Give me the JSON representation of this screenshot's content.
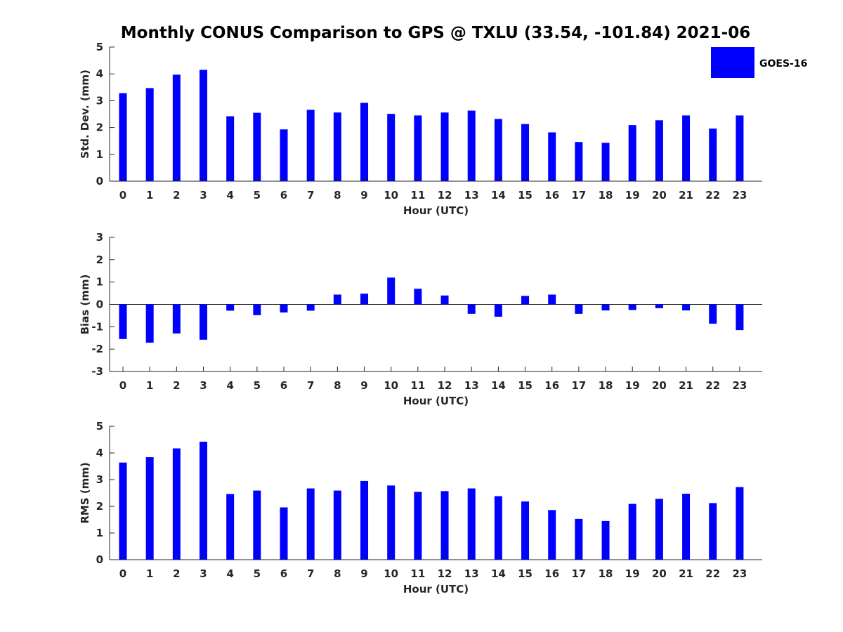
{
  "title": "Monthly CONUS Comparison to GPS @ TXLU (33.54, -101.84) 2021-06",
  "legend": {
    "label": "GOES-16",
    "color": "#0000ff"
  },
  "chart_data": [
    {
      "type": "bar",
      "xlabel": "Hour (UTC)",
      "ylabel": "Std. Dev. (mm)",
      "ylim": [
        0,
        5
      ],
      "yticks": [
        "0",
        "1",
        "2",
        "3",
        "4",
        "5"
      ],
      "categories": [
        "0",
        "1",
        "2",
        "3",
        "4",
        "5",
        "6",
        "7",
        "8",
        "9",
        "10",
        "11",
        "12",
        "13",
        "14",
        "15",
        "16",
        "17",
        "18",
        "19",
        "20",
        "21",
        "22",
        "23"
      ],
      "series": [
        {
          "name": "GOES-16",
          "color": "#0000ff",
          "values": [
            3.28,
            3.47,
            3.97,
            4.15,
            2.42,
            2.55,
            1.93,
            2.66,
            2.56,
            2.92,
            2.51,
            2.45,
            2.56,
            2.63,
            2.32,
            2.13,
            1.82,
            1.46,
            1.43,
            2.09,
            2.27,
            2.45,
            1.96,
            2.45
          ]
        }
      ],
      "grid": false
    },
    {
      "type": "bar",
      "xlabel": "Hour (UTC)",
      "ylabel": "Bias (mm)",
      "ylim": [
        -3,
        3
      ],
      "yticks": [
        "-3",
        "-2",
        "-1",
        "0",
        "1",
        "2",
        "3"
      ],
      "categories": [
        "0",
        "1",
        "2",
        "3",
        "4",
        "5",
        "6",
        "7",
        "8",
        "9",
        "10",
        "11",
        "12",
        "13",
        "14",
        "15",
        "16",
        "17",
        "18",
        "19",
        "20",
        "21",
        "22",
        "23"
      ],
      "series": [
        {
          "name": "GOES-16",
          "color": "#0000ff",
          "values": [
            -1.55,
            -1.71,
            -1.3,
            -1.58,
            -0.28,
            -0.48,
            -0.36,
            -0.28,
            0.44,
            0.48,
            1.2,
            0.7,
            0.4,
            -0.42,
            -0.55,
            0.38,
            0.44,
            -0.42,
            -0.27,
            -0.25,
            -0.17,
            -0.27,
            -0.86,
            -1.15
          ]
        }
      ],
      "grid": false
    },
    {
      "type": "bar",
      "xlabel": "Hour (UTC)",
      "ylabel": "RMS (mm)",
      "ylim": [
        0,
        5
      ],
      "yticks": [
        "0",
        "1",
        "2",
        "3",
        "4",
        "5"
      ],
      "categories": [
        "0",
        "1",
        "2",
        "3",
        "4",
        "5",
        "6",
        "7",
        "8",
        "9",
        "10",
        "11",
        "12",
        "13",
        "14",
        "15",
        "16",
        "17",
        "18",
        "19",
        "20",
        "21",
        "22",
        "23"
      ],
      "series": [
        {
          "name": "GOES-16",
          "color": "#0000ff",
          "values": [
            3.64,
            3.84,
            4.17,
            4.42,
            2.46,
            2.59,
            1.96,
            2.67,
            2.59,
            2.95,
            2.78,
            2.54,
            2.57,
            2.67,
            2.38,
            2.18,
            1.86,
            1.53,
            1.45,
            2.09,
            2.28,
            2.47,
            2.12,
            2.72
          ]
        }
      ],
      "grid": false
    }
  ]
}
